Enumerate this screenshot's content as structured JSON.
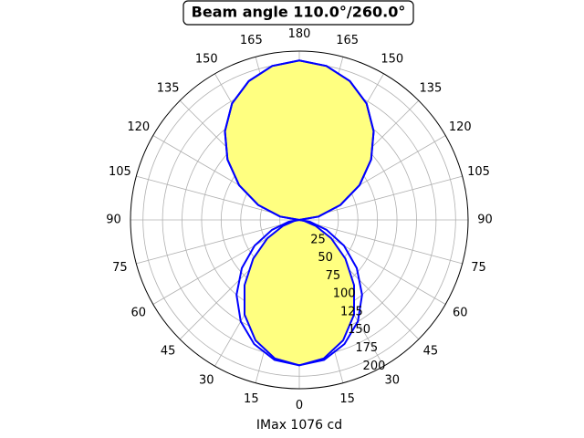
{
  "chart_data": {
    "type": "polar",
    "title": "Beam angle 110.0°/260.0°",
    "xlabel": "IMax 1076 cd",
    "theta": [
      0,
      10,
      20,
      30,
      40,
      50,
      60,
      70,
      80,
      90,
      100,
      110,
      120,
      130,
      140,
      150,
      160,
      170,
      180,
      190,
      200,
      210,
      220,
      230,
      240,
      250,
      260,
      270,
      280,
      290,
      300,
      310,
      320,
      330,
      340,
      350
    ],
    "series": [
      {
        "color": "#0000ff",
        "fill": "#ffff80",
        "values": [
          186,
          180,
          164,
          140,
          109,
          77,
          47,
          22,
          6,
          0,
          25,
          56,
          89,
          120,
          148,
          172,
          189,
          200,
          204,
          200,
          189,
          172,
          148,
          120,
          89,
          56,
          25,
          0,
          6,
          22,
          47,
          77,
          109,
          140,
          164,
          180
        ]
      },
      {
        "color": "#0000ff",
        "values": [
          186,
          182,
          169,
          150,
          125,
          96,
          66,
          37,
          14,
          0,
          25,
          56,
          89,
          120,
          148,
          172,
          189,
          200,
          204,
          200,
          189,
          172,
          148,
          120,
          89,
          56,
          25,
          0,
          14,
          37,
          66,
          96,
          125,
          150,
          169,
          182
        ]
      }
    ],
    "rlim": [
      0,
      216
    ],
    "rticks": [
      25,
      50,
      75,
      100,
      125,
      150,
      175,
      200
    ],
    "thetaticks": [
      0,
      15,
      30,
      45,
      60,
      75,
      90,
      105,
      120,
      135,
      150,
      165,
      180,
      {
        "value": 195,
        "label": "165"
      },
      {
        "value": 210,
        "label": "150"
      },
      {
        "value": 225,
        "label": "135"
      },
      {
        "value": 240,
        "label": "120"
      },
      {
        "value": 255,
        "label": "105"
      },
      {
        "value": 270,
        "label": "90"
      },
      {
        "value": 285,
        "label": "75"
      },
      {
        "value": 300,
        "label": "60"
      },
      {
        "value": 315,
        "label": "45"
      },
      {
        "value": 330,
        "label": "30"
      },
      {
        "value": 345,
        "label": "15"
      }
    ],
    "grid": true
  }
}
